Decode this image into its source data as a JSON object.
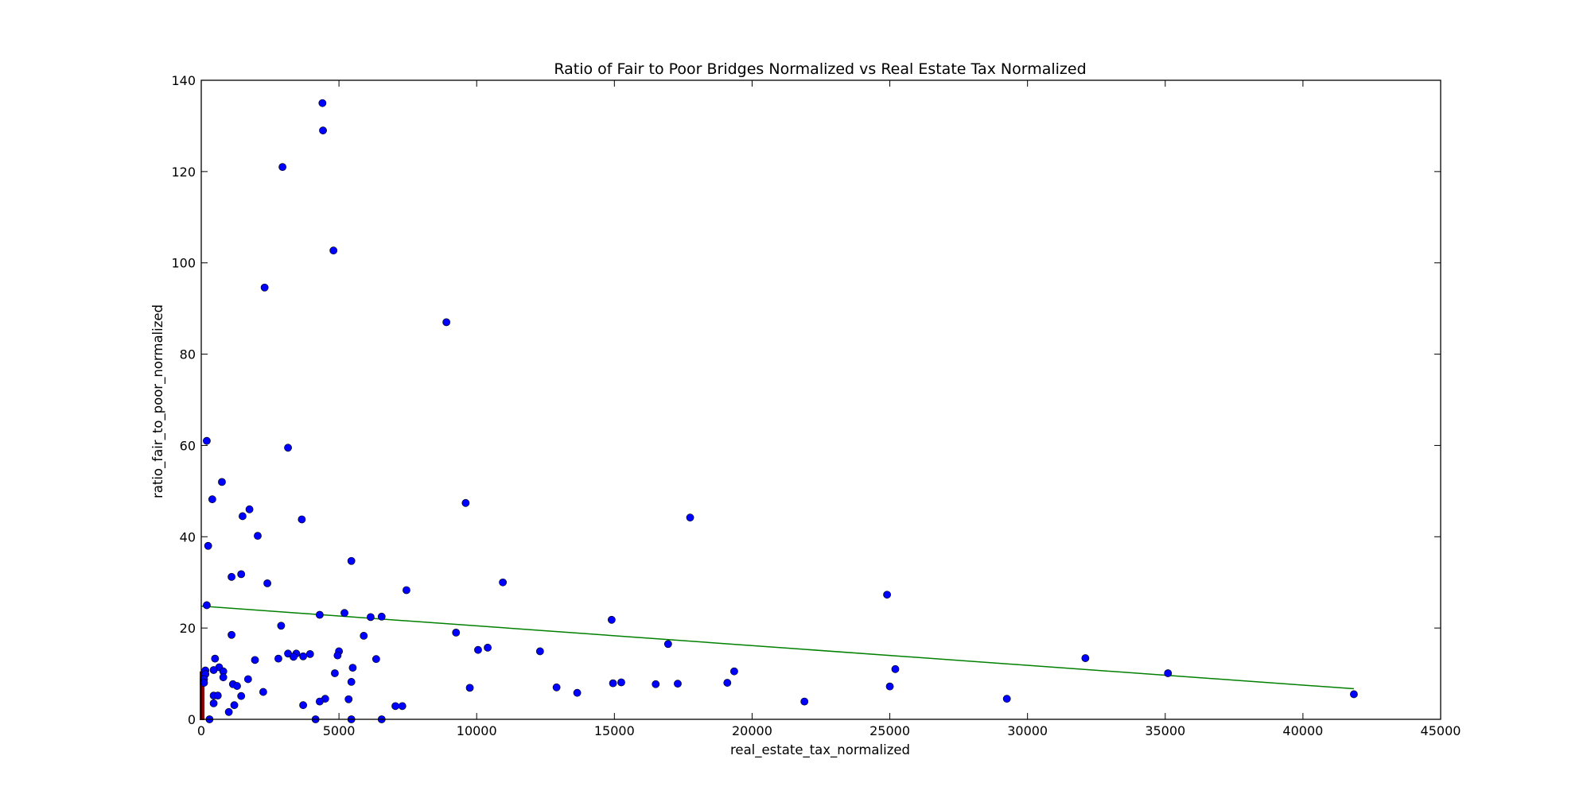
{
  "chart_data": {
    "type": "scatter",
    "title": "Ratio of Fair to Poor Bridges Normalized vs Real Estate Tax Normalized",
    "xlabel": "real_estate_tax_normalized",
    "ylabel": "ratio_fair_to_poor_normalized",
    "xlim": [
      0,
      45000
    ],
    "ylim": [
      0,
      140
    ],
    "x_ticks": [
      "0",
      "5000",
      "10000",
      "15000",
      "20000",
      "25000",
      "30000",
      "35000",
      "40000",
      "45000"
    ],
    "y_ticks": [
      "0",
      "20",
      "40",
      "60",
      "80",
      "100",
      "120",
      "140"
    ],
    "grid": false,
    "colors": {
      "points": "#0000ff",
      "fit_line": "#008000",
      "low_values": "#8b0000"
    },
    "series": [
      {
        "points": [
          [
            4400,
            135
          ],
          [
            4420,
            129
          ],
          [
            2950,
            121
          ],
          [
            4800,
            102.7
          ],
          [
            2300,
            94.6
          ],
          [
            8900,
            87
          ],
          [
            200,
            61
          ],
          [
            3150,
            59.5
          ],
          [
            750,
            52
          ],
          [
            400,
            48.2
          ],
          [
            9600,
            47.4
          ],
          [
            1750,
            46
          ],
          [
            1500,
            44.5
          ],
          [
            3650,
            43.8
          ],
          [
            17750,
            44.2
          ],
          [
            2050,
            40.2
          ],
          [
            250,
            38
          ],
          [
            5450,
            34.7
          ],
          [
            1450,
            31.8
          ],
          [
            1100,
            31.2
          ],
          [
            2400,
            29.8
          ],
          [
            10950,
            30
          ],
          [
            7450,
            28.3
          ],
          [
            24900,
            27.3
          ],
          [
            200,
            25
          ],
          [
            5200,
            23.3
          ],
          [
            4300,
            22.9
          ],
          [
            6150,
            22.4
          ],
          [
            6550,
            22.5
          ],
          [
            14900,
            21.8
          ],
          [
            2900,
            20.5
          ],
          [
            9250,
            19
          ],
          [
            1100,
            18.5
          ],
          [
            5900,
            18.3
          ],
          [
            16950,
            16.5
          ],
          [
            10400,
            15.7
          ],
          [
            10050,
            15.2
          ],
          [
            12300,
            14.9
          ],
          [
            5000,
            14.9
          ],
          [
            3150,
            14.4
          ],
          [
            3450,
            14.4
          ],
          [
            3950,
            14.3
          ],
          [
            3350,
            13.7
          ],
          [
            3700,
            13.8
          ],
          [
            4950,
            14
          ],
          [
            2800,
            13.3
          ],
          [
            6350,
            13.2
          ],
          [
            1950,
            13
          ],
          [
            500,
            13.3
          ],
          [
            32100,
            13.4
          ],
          [
            5500,
            11.3
          ],
          [
            25200,
            11
          ],
          [
            650,
            11.4
          ],
          [
            450,
            10.8
          ],
          [
            800,
            10.5
          ],
          [
            4850,
            10.1
          ],
          [
            19350,
            10.5
          ],
          [
            35100,
            10.1
          ],
          [
            800,
            9.2
          ],
          [
            1700,
            8.8
          ],
          [
            5450,
            8.2
          ],
          [
            15250,
            8.1
          ],
          [
            14950,
            7.9
          ],
          [
            16500,
            7.7
          ],
          [
            17300,
            7.8
          ],
          [
            19100,
            8
          ],
          [
            1150,
            7.7
          ],
          [
            1300,
            7.3
          ],
          [
            9750,
            6.9
          ],
          [
            12900,
            7
          ],
          [
            25000,
            7.2
          ],
          [
            2250,
            6
          ],
          [
            13650,
            5.8
          ],
          [
            450,
            5.2
          ],
          [
            600,
            5.2
          ],
          [
            1450,
            5.1
          ],
          [
            41850,
            5.5
          ],
          [
            4500,
            4.5
          ],
          [
            5350,
            4.4
          ],
          [
            4300,
            3.9
          ],
          [
            29250,
            4.5
          ],
          [
            21900,
            3.9
          ],
          [
            450,
            3.5
          ],
          [
            1200,
            3.1
          ],
          [
            3700,
            3.1
          ],
          [
            7050,
            2.9
          ],
          [
            7300,
            2.9
          ],
          [
            1000,
            1.6
          ],
          [
            5450,
            0
          ],
          [
            6550,
            0
          ],
          [
            4150,
            0
          ],
          [
            300,
            0
          ],
          [
            150,
            10.7
          ],
          [
            150,
            9.9
          ],
          [
            100,
            8.8
          ],
          [
            100,
            8
          ]
        ]
      }
    ],
    "fit_line": {
      "x": [
        0,
        41850
      ],
      "y": [
        24.8,
        6.7
      ]
    }
  }
}
